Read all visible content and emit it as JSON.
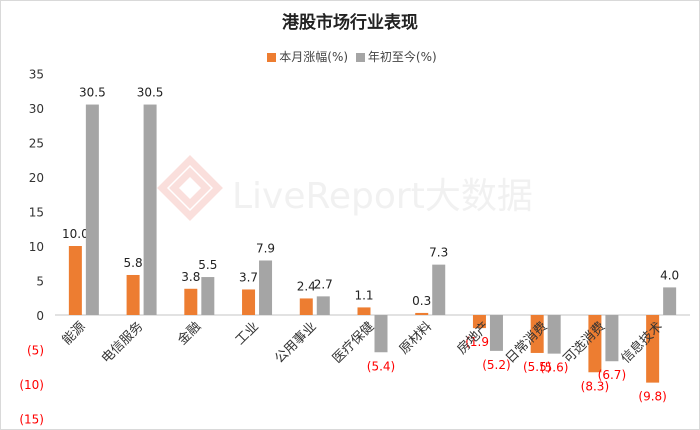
{
  "chart_data": {
    "type": "bar",
    "title": "港股市场行业表现",
    "xlabel": "",
    "ylabel": "",
    "ylim": [
      -15,
      35
    ],
    "yticks": [
      35,
      30,
      25,
      20,
      15,
      10,
      5,
      0,
      -5,
      -10,
      -15
    ],
    "ytick_labels": [
      "35",
      "30",
      "25",
      "20",
      "15",
      "10",
      "5",
      "0",
      "(5)",
      "(10)",
      "(15)"
    ],
    "grid": false,
    "legend_position": "top",
    "categories": [
      "能源",
      "电信服务",
      "金融",
      "工业",
      "公用事业",
      "医疗保健",
      "原材料",
      "房地产",
      "日常消费",
      "可选消费",
      "信息技术"
    ],
    "series": [
      {
        "name": "本月涨幅(%)",
        "color": "#ED7D31",
        "values": [
          10.0,
          5.8,
          3.8,
          3.7,
          2.4,
          1.1,
          0.3,
          -1.9,
          -5.5,
          -8.3,
          -9.8
        ],
        "labels": [
          "10.0",
          "5.8",
          "3.8",
          "3.7",
          "2.4",
          "1.1",
          "0.3",
          "(1.9)",
          "(5.5)",
          "(8.3)",
          "(9.8)"
        ]
      },
      {
        "name": "年初至今(%)",
        "color": "#A5A5A5",
        "values": [
          30.5,
          30.5,
          5.5,
          7.9,
          2.7,
          -5.4,
          7.3,
          -5.2,
          -5.6,
          -6.7,
          4.0
        ],
        "labels": [
          "30.5",
          "30.5",
          "5.5",
          "7.9",
          "2.7",
          "(5.4)",
          "7.3",
          "(5.2)",
          "(5.6)",
          "(6.7)",
          "4.0"
        ]
      }
    ],
    "negative_label_color": "#FF0000",
    "watermark": "LiveReport大数据"
  }
}
